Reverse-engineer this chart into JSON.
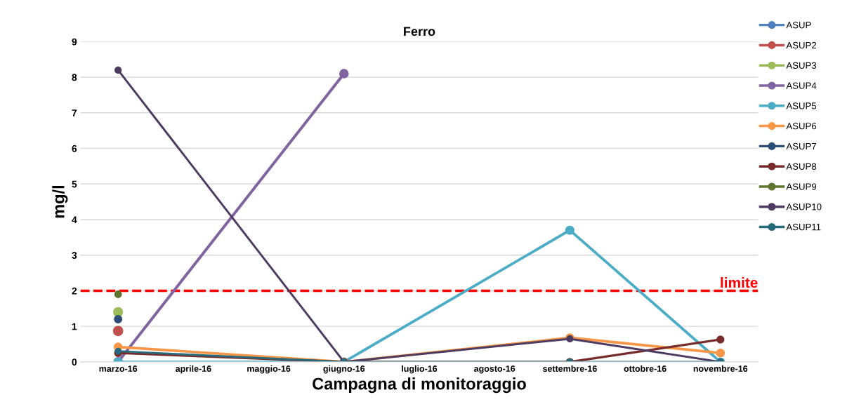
{
  "chart_data": {
    "type": "line",
    "title": "Ferro",
    "xlabel": "Campagna di monitoraggio",
    "ylabel": "mg/l",
    "categories": [
      "marzo-16",
      "aprile-16",
      "maggio-16",
      "giugno-16",
      "luglio-16",
      "agosto-16",
      "settembre-16",
      "ottobre-16",
      "novembre-16"
    ],
    "series": [
      {
        "name": "ASUP",
        "color": "#4f81bd",
        "values": [
          null,
          null,
          null,
          null,
          null,
          null,
          null,
          null,
          null
        ]
      },
      {
        "name": "ASUP2",
        "color": "#c0504d",
        "values": [
          0.87,
          null,
          null,
          null,
          null,
          null,
          null,
          null,
          null
        ]
      },
      {
        "name": "ASUP3",
        "color": "#9bbb59",
        "values": [
          1.4,
          null,
          null,
          null,
          null,
          null,
          null,
          null,
          null
        ]
      },
      {
        "name": "ASUP4",
        "color": "#8064a2",
        "values": [
          0,
          null,
          null,
          8.1,
          null,
          null,
          null,
          null,
          null
        ]
      },
      {
        "name": "ASUP5",
        "color": "#4bacc6",
        "values": [
          0,
          null,
          null,
          0,
          null,
          null,
          3.7,
          null,
          0
        ]
      },
      {
        "name": "ASUP6",
        "color": "#f79646",
        "values": [
          0.42,
          null,
          null,
          0,
          null,
          null,
          0.68,
          null,
          0.25
        ]
      },
      {
        "name": "ASUP7",
        "color": "#2c4d75",
        "values": [
          1.2,
          null,
          null,
          null,
          null,
          null,
          null,
          null,
          null
        ]
      },
      {
        "name": "ASUP8",
        "color": "#772c2a",
        "values": [
          0.25,
          null,
          null,
          0,
          null,
          null,
          0,
          null,
          0.63
        ]
      },
      {
        "name": "ASUP9",
        "color": "#5f7530",
        "values": [
          1.9,
          null,
          null,
          null,
          null,
          null,
          null,
          null,
          null
        ]
      },
      {
        "name": "ASUP10",
        "color": "#4d3b62",
        "values": [
          8.2,
          null,
          null,
          0,
          null,
          null,
          0.65,
          null,
          0
        ]
      },
      {
        "name": "ASUP11",
        "color": "#276a7c",
        "values": [
          0.3,
          null,
          null,
          0,
          null,
          null,
          0,
          null,
          0
        ]
      }
    ],
    "ylim": [
      0,
      9
    ],
    "yticks": [
      0,
      1,
      2,
      3,
      4,
      5,
      6,
      7,
      8,
      9
    ],
    "grid": "y",
    "legend": "right",
    "marker": "circle",
    "line_style": "solid",
    "ref_lines": [
      {
        "axis": "y",
        "value": 2,
        "label": "limite",
        "color": "#ff0000",
        "line_style": "dashed"
      }
    ]
  }
}
